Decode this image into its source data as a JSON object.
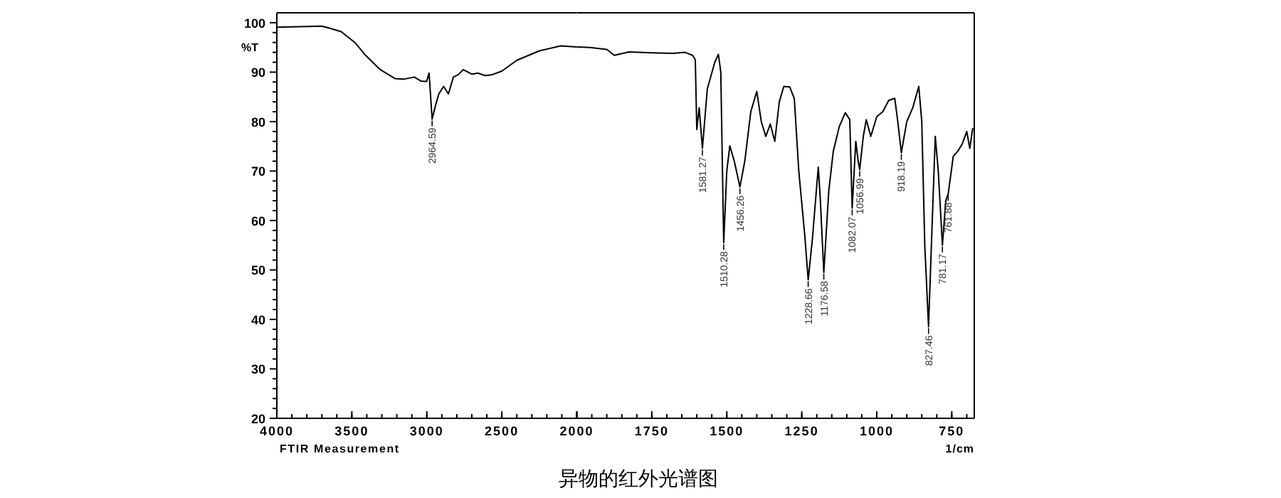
{
  "chart_data": [
    {
      "type": "line",
      "ylabel": "%T",
      "xlim": [
        4000,
        2000
      ],
      "ylim": [
        20,
        102
      ],
      "xticks": [
        4000,
        3500,
        3000,
        2500,
        2000
      ],
      "yticks": [
        20,
        30,
        40,
        50,
        60,
        70,
        80,
        90,
        100
      ],
      "grid": false,
      "series": [
        {
          "color": "#000000",
          "x": [
            4000,
            3850,
            3700,
            3650,
            3571,
            3480,
            3408,
            3310,
            3213,
            3150,
            3083,
            3040,
            3002,
            2985,
            2964.59,
            2940,
            2920,
            2888,
            2856,
            2823,
            2790,
            2758,
            2700,
            2660,
            2610,
            2563,
            2500,
            2400,
            2250,
            2107,
            2000
          ],
          "values": [
            99.1,
            99.2,
            99.3,
            98.9,
            98.2,
            96,
            93.4,
            90.5,
            88.7,
            88.6,
            89.0,
            88.2,
            88.1,
            89.8,
            80.5,
            83.5,
            85.6,
            87.1,
            85.6,
            89.0,
            89.5,
            90.5,
            89.6,
            89.8,
            89.3,
            89.5,
            90.2,
            92.4,
            94.3,
            95.3,
            95.1
          ]
        }
      ],
      "annotations": [
        "FTIR Measurement",
        {
          "text": "2964.59",
          "x": 2964.59,
          "y": 80.5
        }
      ]
    },
    {
      "type": "line",
      "title": "异物的红外光谱图",
      "xlabel": "1/cm",
      "xlim": [
        2000,
        675
      ],
      "ylim": [
        20,
        102
      ],
      "xticks": [
        {
          "value": 2000,
          "label": null
        },
        1750,
        1500,
        1250,
        1000,
        750
      ],
      "tick_labels": "x",
      "grid": false,
      "series": [
        {
          "color": "#000000",
          "x": [
            2000,
            1956,
            1900,
            1875,
            1826,
            1750,
            1679,
            1640,
            1614,
            1605,
            1600,
            1592,
            1581.27,
            1565,
            1540,
            1528,
            1520,
            1510.28,
            1500,
            1490,
            1475,
            1456.26,
            1440,
            1420,
            1400,
            1385,
            1370,
            1355,
            1340,
            1325,
            1310,
            1290,
            1275,
            1260,
            1240,
            1228.66,
            1215,
            1195,
            1188,
            1176.58,
            1160,
            1145,
            1125,
            1105,
            1090,
            1082.07,
            1070,
            1062,
            1056.99,
            1045,
            1035,
            1020,
            1000,
            980,
            960,
            940,
            930,
            918.19,
            900,
            880,
            860,
            850,
            840,
            827.46,
            815,
            805,
            795,
            781.17,
            770,
            761.88,
            745,
            730,
            715,
            700,
            690,
            680
          ],
          "values": [
            95.1,
            95.0,
            94.6,
            93.4,
            94.1,
            93.9,
            93.8,
            94.0,
            93.4,
            92.5,
            78.4,
            82.8,
            74.6,
            86.6,
            92,
            93.6,
            90,
            55.5,
            70,
            75.1,
            72,
            66.8,
            72,
            82,
            86.1,
            80,
            77,
            79.5,
            76,
            84,
            87.1,
            87,
            84.7,
            70,
            57,
            48,
            56,
            70.8,
            64,
            49.5,
            66,
            74,
            79,
            81.8,
            80.4,
            62.5,
            76,
            72,
            70.3,
            77,
            80.4,
            77,
            81,
            82,
            84.3,
            84.7,
            80,
            73.7,
            80,
            82.8,
            87.1,
            80,
            55,
            38.5,
            60,
            77,
            70,
            55,
            64,
            65.4,
            73,
            74,
            75.5,
            78,
            74.6,
            78.7
          ]
        }
      ],
      "annotations": [
        {
          "text": "1581.27",
          "x": 1581.27,
          "y": 74.6
        },
        {
          "text": "1510.28",
          "x": 1510.28,
          "y": 55.5
        },
        {
          "text": "1456.26",
          "x": 1456.26,
          "y": 66.8
        },
        {
          "text": "1228.66",
          "x": 1228.66,
          "y": 48
        },
        {
          "text": "1176.58",
          "x": 1176.58,
          "y": 49.5
        },
        {
          "text": "1082.07",
          "x": 1082.07,
          "y": 62.5
        },
        {
          "text": "1056.99",
          "x": 1056.99,
          "y": 70.3
        },
        {
          "text": "918.19",
          "x": 918.19,
          "y": 73.7
        },
        {
          "text": "827.46",
          "x": 827.46,
          "y": 38.5
        },
        {
          "text": "781.17",
          "x": 781.17,
          "y": 55
        },
        {
          "text": "761.88",
          "x": 761.88,
          "y": 65.4
        }
      ]
    }
  ]
}
